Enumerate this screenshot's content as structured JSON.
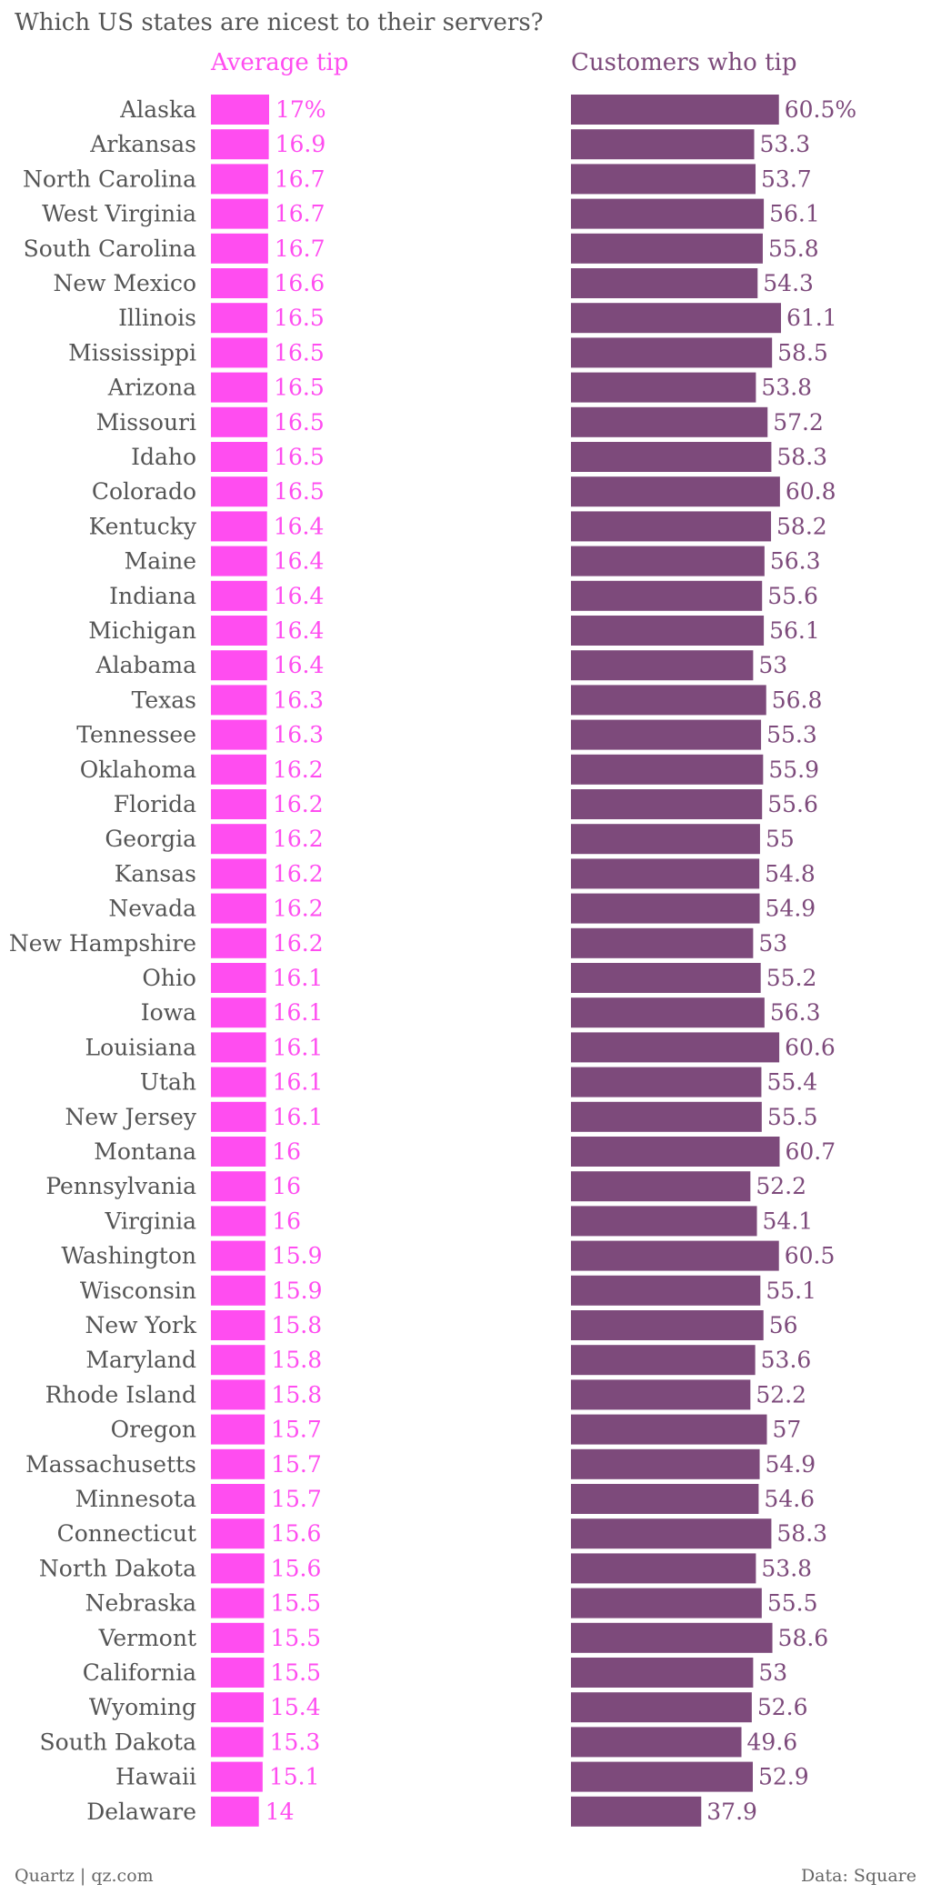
{
  "title": "Which US states are nicest to their servers?",
  "colors": {
    "tip": "#ff4df0",
    "customers": "#7d4a7b",
    "text": "#555555"
  },
  "chart_data": {
    "type": "bar",
    "title": "Which US states are nicest to their servers?",
    "categories": [
      "Alaska",
      "Arkansas",
      "North Carolina",
      "West Virginia",
      "South Carolina",
      "New Mexico",
      "Illinois",
      "Mississippi",
      "Arizona",
      "Missouri",
      "Idaho",
      "Colorado",
      "Kentucky",
      "Maine",
      "Indiana",
      "Michigan",
      "Alabama",
      "Texas",
      "Tennessee",
      "Oklahoma",
      "Florida",
      "Georgia",
      "Kansas",
      "Nevada",
      "New Hampshire",
      "Ohio",
      "Iowa",
      "Louisiana",
      "Utah",
      "New Jersey",
      "Montana",
      "Pennsylvania",
      "Virginia",
      "Washington",
      "Wisconsin",
      "New York",
      "Maryland",
      "Rhode Island",
      "Oregon",
      "Massachusetts",
      "Minnesota",
      "Connecticut",
      "North Dakota",
      "Nebraska",
      "Vermont",
      "California",
      "Wyoming",
      "South Dakota",
      "Hawaii",
      "Delaware"
    ],
    "series": [
      {
        "name": "Average tip",
        "values": [
          17,
          16.9,
          16.7,
          16.7,
          16.7,
          16.6,
          16.5,
          16.5,
          16.5,
          16.5,
          16.5,
          16.5,
          16.4,
          16.4,
          16.4,
          16.4,
          16.4,
          16.3,
          16.3,
          16.2,
          16.2,
          16.2,
          16.2,
          16.2,
          16.2,
          16.1,
          16.1,
          16.1,
          16.1,
          16.1,
          16,
          16,
          16,
          15.9,
          15.9,
          15.8,
          15.8,
          15.8,
          15.7,
          15.7,
          15.7,
          15.6,
          15.6,
          15.5,
          15.5,
          15.5,
          15.4,
          15.3,
          15.1,
          14
        ],
        "labels": [
          "17%",
          "16.9",
          "16.7",
          "16.7",
          "16.7",
          "16.6",
          "16.5",
          "16.5",
          "16.5",
          "16.5",
          "16.5",
          "16.5",
          "16.4",
          "16.4",
          "16.4",
          "16.4",
          "16.4",
          "16.3",
          "16.3",
          "16.2",
          "16.2",
          "16.2",
          "16.2",
          "16.2",
          "16.2",
          "16.1",
          "16.1",
          "16.1",
          "16.1",
          "16.1",
          "16",
          "16",
          "16",
          "15.9",
          "15.9",
          "15.8",
          "15.8",
          "15.8",
          "15.7",
          "15.7",
          "15.7",
          "15.6",
          "15.6",
          "15.5",
          "15.5",
          "15.5",
          "15.4",
          "15.3",
          "15.1",
          "14"
        ]
      },
      {
        "name": "Customers who tip",
        "values": [
          60.5,
          53.3,
          53.7,
          56.1,
          55.8,
          54.3,
          61.1,
          58.5,
          53.8,
          57.2,
          58.3,
          60.8,
          58.2,
          56.3,
          55.6,
          56.1,
          53,
          56.8,
          55.3,
          55.9,
          55.6,
          55,
          54.8,
          54.9,
          53,
          55.2,
          56.3,
          60.6,
          55.4,
          55.5,
          60.7,
          52.2,
          54.1,
          60.5,
          55.1,
          56,
          53.6,
          52.2,
          57,
          54.9,
          54.6,
          58.3,
          53.8,
          55.5,
          58.6,
          53,
          52.6,
          49.6,
          52.9,
          37.9
        ],
        "labels": [
          "60.5%",
          "53.3",
          "53.7",
          "56.1",
          "55.8",
          "54.3",
          "61.1",
          "58.5",
          "53.8",
          "57.2",
          "58.3",
          "60.8",
          "58.2",
          "56.3",
          "55.6",
          "56.1",
          "53",
          "56.8",
          "55.3",
          "55.9",
          "55.6",
          "55",
          "54.8",
          "54.9",
          "53",
          "55.2",
          "56.3",
          "60.6",
          "55.4",
          "55.5",
          "60.7",
          "52.2",
          "54.1",
          "60.5",
          "55.1",
          "56",
          "53.6",
          "52.2",
          "57",
          "54.9",
          "54.6",
          "58.3",
          "53.8",
          "55.5",
          "58.6",
          "53",
          "52.6",
          "49.6",
          "52.9",
          "37.9"
        ]
      }
    ]
  },
  "footer": {
    "source_left": "Quartz | qz.com",
    "source_right": "Data: Square"
  }
}
